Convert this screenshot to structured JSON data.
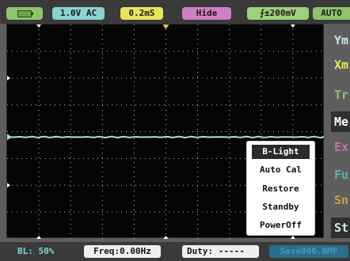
{
  "colors": {
    "battery": "#8fc46a",
    "channel": "#88d4d0",
    "timebase": "#e8e55a",
    "hide": "#cf7fc4",
    "trigger": "#9fd07a",
    "waveform": "#9ee4e2",
    "grid": "#bdbdbd"
  },
  "status_bar": {
    "battery_icon": "battery-icon",
    "channel_coupling": "1.0V AC",
    "timebase": "0.2mS",
    "hide_label": "Hide",
    "trigger_icon": "rising-edge-icon",
    "trigger_level": "±200mV",
    "mode": "AUTO"
  },
  "side_menu": [
    {
      "label": "Ym",
      "color": "#cfe8f0",
      "active": false
    },
    {
      "label": "Xm",
      "color": "#e8e55a",
      "active": false
    },
    {
      "label": "Tr",
      "color": "#8fc46a",
      "active": false
    },
    {
      "label": "Me",
      "color": "#ffffff",
      "active": true
    },
    {
      "label": "Ex",
      "color": "#cf6fae",
      "active": false
    },
    {
      "label": "Fu",
      "color": "#4fb6b8",
      "active": false
    },
    {
      "label": "Sn",
      "color": "#c9a24a",
      "active": false
    },
    {
      "label": "St",
      "color": "#cfe8f0",
      "active": true
    }
  ],
  "popup_menu": {
    "items": [
      "B-Light",
      "Auto Cal",
      "Restore",
      "Standby",
      "PowerOff"
    ],
    "selected_index": 0
  },
  "bottom_bar": {
    "backlight": "BL: 50%",
    "frequency": "Freq:0.00Hz",
    "duty": "Duty: -----",
    "save": "Save000.BMP"
  }
}
